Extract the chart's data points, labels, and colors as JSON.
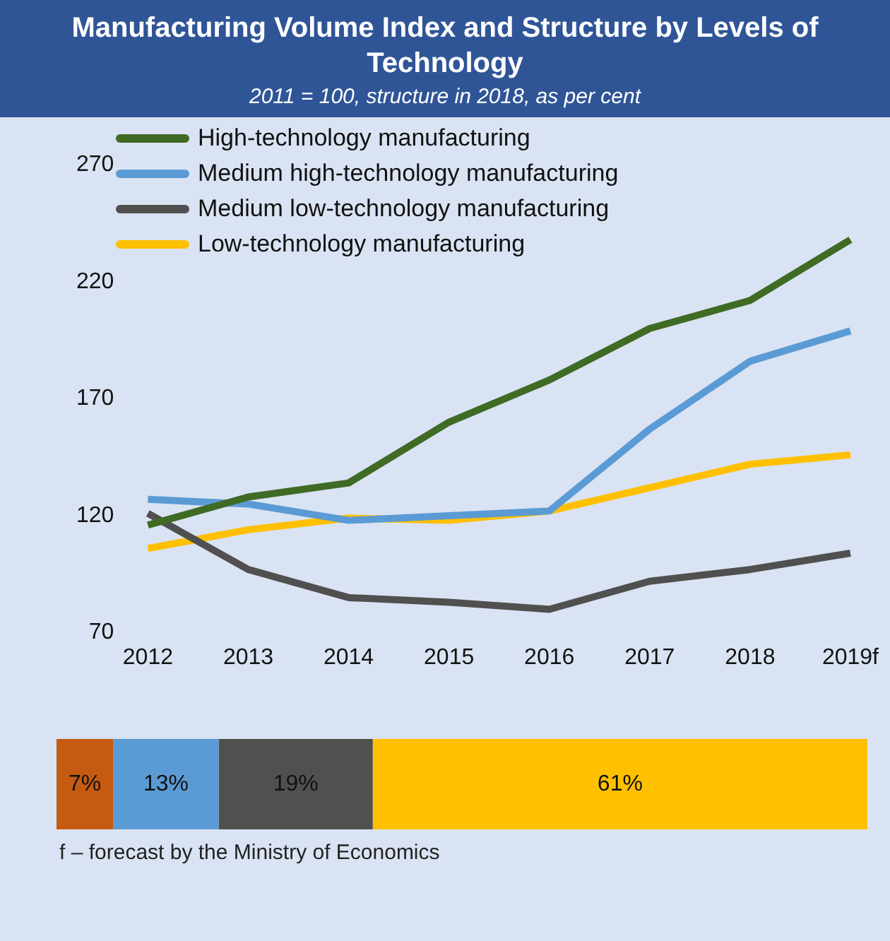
{
  "chart_data": [
    {
      "type": "line",
      "title": "Manufacturing Volume Index and Structure by Levels of Technology",
      "subtitle": "2011 = 100, structure in 2018, as per cent",
      "categories": [
        "2012",
        "2013",
        "2014",
        "2015",
        "2016",
        "2017",
        "2018",
        "2019f"
      ],
      "series": [
        {
          "name": "High-technology manufacturing",
          "color": "#3f6b25",
          "values": [
            116,
            128,
            134,
            160,
            178,
            200,
            212,
            238
          ]
        },
        {
          "name": "Medium high-technology manufacturing",
          "color": "#5b9bd5",
          "values": [
            127,
            125,
            118,
            120,
            122,
            157,
            186,
            199
          ]
        },
        {
          "name": "Medium low-technology manufacturing",
          "color": "#505050",
          "values": [
            121,
            97,
            85,
            83,
            80,
            92,
            97,
            104
          ]
        },
        {
          "name": "Low-technology manufacturing",
          "color": "#ffc000",
          "values": [
            106,
            114,
            119,
            118,
            122,
            132,
            142,
            146
          ]
        }
      ],
      "ylim": [
        70,
        270
      ],
      "yticks": [
        70,
        120,
        170,
        220,
        270
      ],
      "grid": false,
      "legend": "top left",
      "marker": "none",
      "line_style": "solid"
    },
    {
      "type": "bar",
      "orientation": "horizontal",
      "stacked": true,
      "categories": [
        null
      ],
      "tick_labels": false,
      "grid": false,
      "legend": false,
      "series": [
        {
          "color": "#c55a11",
          "values": [
            7
          ],
          "value_labels": [
            "7%"
          ]
        },
        {
          "color": "#5b9bd5",
          "values": [
            13
          ],
          "value_labels": [
            "13%"
          ]
        },
        {
          "color": "#505050",
          "values": [
            19
          ],
          "value_labels": [
            "19%"
          ]
        },
        {
          "color": "#ffc000",
          "values": [
            61
          ],
          "value_labels": [
            "61%"
          ]
        }
      ],
      "annotations": [
        "f – forecast by the Ministry of Economics"
      ]
    }
  ]
}
